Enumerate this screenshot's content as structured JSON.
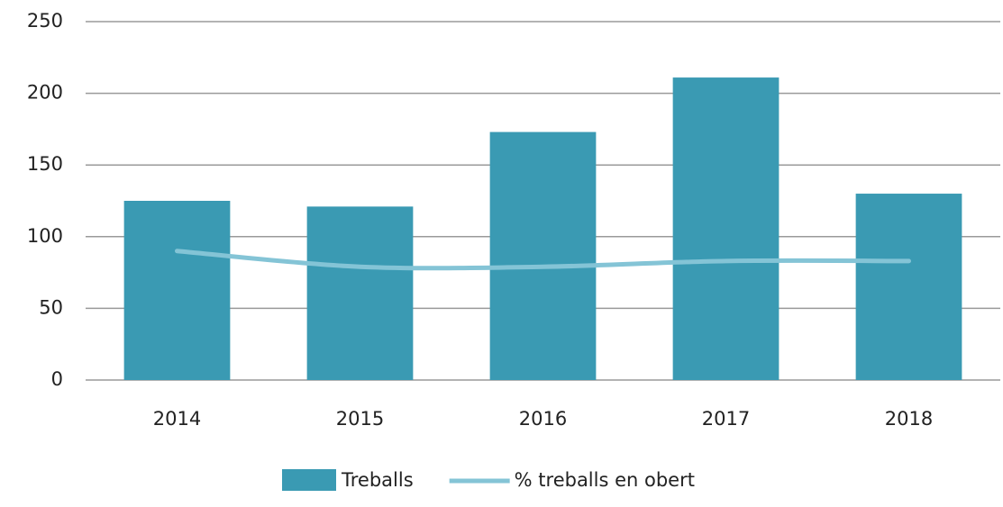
{
  "chart_data": {
    "type": "bar",
    "categories": [
      "2014",
      "2015",
      "2016",
      "2017",
      "2018"
    ],
    "series": [
      {
        "name": "Treballs",
        "type": "bar",
        "color": "#3a9ab3",
        "values": [
          125,
          121,
          173,
          211,
          130
        ]
      },
      {
        "name": "% treballs en obert",
        "type": "line",
        "color": "#84c4d6",
        "values": [
          90,
          79,
          79,
          83,
          83
        ]
      }
    ],
    "ylim": [
      0,
      250
    ],
    "yticks": [
      0,
      50,
      100,
      150,
      200,
      250
    ],
    "grid": true,
    "legend": "bottom"
  }
}
